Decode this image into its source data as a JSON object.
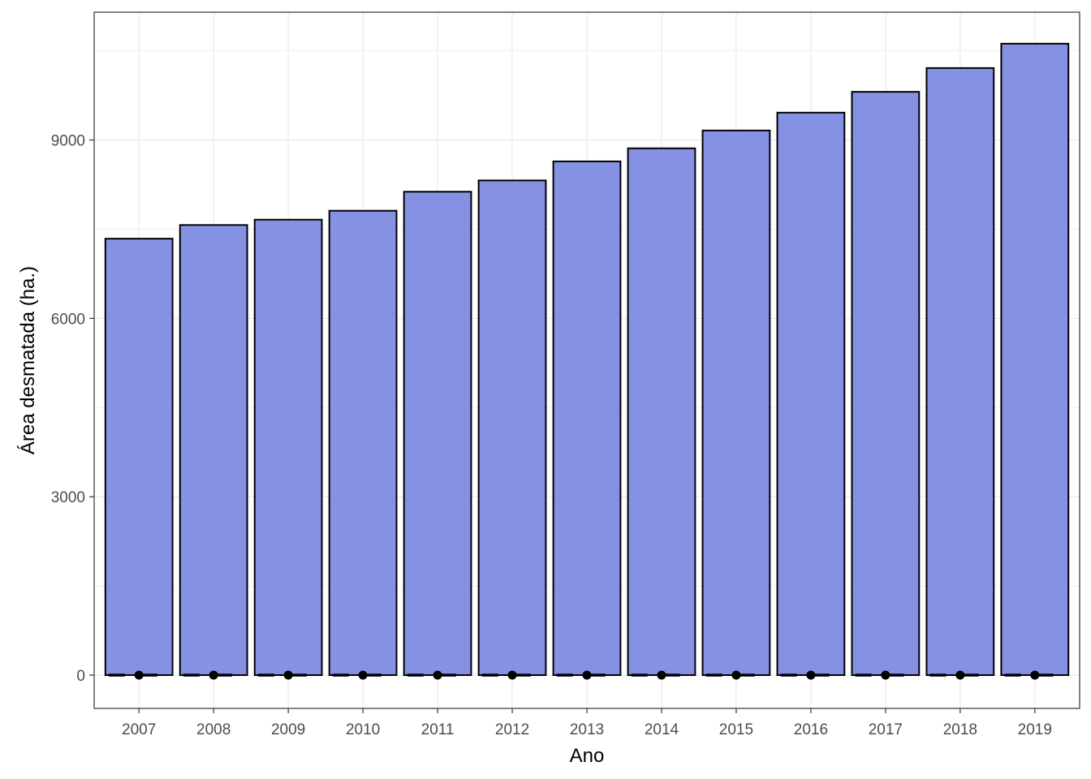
{
  "chart_data": {
    "type": "bar",
    "title": "",
    "xlabel": "Ano",
    "ylabel": "Área desmatada (ha.)",
    "categories": [
      "2007",
      "2008",
      "2009",
      "2010",
      "2011",
      "2012",
      "2013",
      "2014",
      "2015",
      "2016",
      "2017",
      "2018",
      "2019"
    ],
    "values": [
      7340,
      7570,
      7660,
      7810,
      8130,
      8320,
      8640,
      8860,
      9160,
      9460,
      9810,
      10210,
      10620
    ],
    "y_ticks": [
      0,
      3000,
      6000,
      9000
    ],
    "y_tick_labels": [
      "0",
      "3000",
      "6000",
      "9000"
    ],
    "ylim": [
      -560,
      11150
    ],
    "grid": true,
    "legend": "none",
    "overlay_points": [
      0,
      0,
      0,
      0,
      0,
      0,
      0,
      0,
      0,
      0,
      0,
      0,
      0
    ],
    "colors": {
      "bar_fill": "#8592e3",
      "bar_stroke": "#000000",
      "grid": "#ebebeb",
      "panel_border": "#333333",
      "point": "#000000"
    }
  }
}
